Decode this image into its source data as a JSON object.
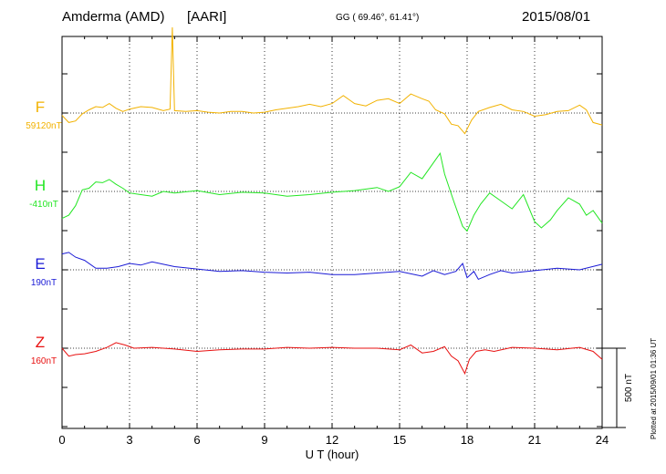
{
  "header": {
    "station": "Amderma (AMD)",
    "network": "[AARI]",
    "coords": "GG ( 69.46°,  61.41°)",
    "date": "2015/08/01"
  },
  "footer": {
    "credit": "Plotted at 2015/09/01 01:36 UT"
  },
  "chart_data": {
    "type": "line",
    "title": "",
    "xlabel": "U T (hour)",
    "ylabel": "",
    "xlim": [
      0,
      24
    ],
    "x_ticks": [
      "0",
      "3",
      "6",
      "9",
      "12",
      "15",
      "18",
      "21",
      "24"
    ],
    "grid": "vertical dotted at every 3 h; horizontal dotted baseline per component",
    "scale_bar": {
      "label": "500 nT",
      "value_nT": 500
    },
    "series": [
      {
        "name": "F",
        "baseline_label": "59120nT",
        "baseline_nT": 59120,
        "color": "#f2b200",
        "x": [
          0,
          0.3,
          0.6,
          0.9,
          1.2,
          1.5,
          1.8,
          2.1,
          2.4,
          2.7,
          3.0,
          3.5,
          4.0,
          4.5,
          4.8,
          4.9,
          5.0,
          5.5,
          6,
          6.5,
          7,
          7.5,
          8,
          8.5,
          9,
          9.5,
          10,
          10.5,
          11,
          11.5,
          12,
          12.5,
          13,
          13.5,
          14,
          14.5,
          15,
          15.5,
          16,
          16.3,
          16.6,
          17,
          17.3,
          17.6,
          17.9,
          18.2,
          18.5,
          19,
          19.5,
          20,
          20.5,
          21,
          21.5,
          22,
          22.5,
          23,
          23.3,
          23.6,
          24
        ],
        "values": [
          -15,
          -60,
          -50,
          -5,
          20,
          40,
          35,
          60,
          30,
          10,
          25,
          40,
          35,
          15,
          25,
          540,
          15,
          10,
          15,
          5,
          0,
          10,
          10,
          0,
          5,
          20,
          30,
          40,
          55,
          40,
          60,
          110,
          60,
          45,
          80,
          90,
          60,
          120,
          90,
          75,
          20,
          -5,
          -70,
          -80,
          -130,
          -45,
          10,
          35,
          55,
          20,
          10,
          -20,
          -10,
          10,
          15,
          50,
          20,
          -60,
          -75
        ]
      },
      {
        "name": "H",
        "baseline_label": "-410nT",
        "baseline_nT": -410,
        "color": "#22e622",
        "x": [
          0,
          0.3,
          0.6,
          0.9,
          1.2,
          1.5,
          1.8,
          2.1,
          2.4,
          2.7,
          3.0,
          3.5,
          4.0,
          4.5,
          5,
          6,
          7,
          8,
          9,
          10,
          11,
          12,
          13,
          14,
          14.5,
          15,
          15.5,
          16,
          16.5,
          16.8,
          17,
          17.4,
          17.8,
          18,
          18.3,
          18.6,
          19,
          19.5,
          20,
          20.5,
          21,
          21.3,
          21.7,
          22,
          22.5,
          23,
          23.3,
          23.6,
          24
        ],
        "values": [
          -170,
          -150,
          -90,
          10,
          20,
          60,
          55,
          75,
          45,
          20,
          -10,
          -20,
          -30,
          0,
          -10,
          5,
          -20,
          -5,
          -10,
          -30,
          -20,
          -5,
          5,
          25,
          0,
          30,
          120,
          80,
          180,
          240,
          110,
          -60,
          -220,
          -250,
          -150,
          -80,
          -10,
          -60,
          -110,
          -20,
          -190,
          -230,
          -180,
          -120,
          -40,
          -80,
          -150,
          -120,
          -200
        ]
      },
      {
        "name": "E",
        "baseline_label": "190nT",
        "baseline_nT": 190,
        "color": "#1a1ad6",
        "x": [
          0,
          0.3,
          0.6,
          1,
          1.5,
          2,
          2.5,
          3,
          3.5,
          4,
          5,
          6,
          7,
          8,
          9,
          10,
          11,
          12,
          13,
          14,
          15,
          16,
          16.5,
          17,
          17.5,
          17.8,
          18,
          18.3,
          18.5,
          19,
          19.5,
          20,
          21,
          22,
          23,
          24
        ],
        "values": [
          100,
          110,
          80,
          60,
          10,
          10,
          20,
          40,
          30,
          50,
          20,
          5,
          -10,
          -5,
          -15,
          -20,
          -15,
          -30,
          -30,
          -20,
          -10,
          -40,
          -5,
          -30,
          -10,
          40,
          -50,
          -10,
          -60,
          -30,
          -5,
          -20,
          -5,
          10,
          0,
          35
        ]
      },
      {
        "name": "Z",
        "baseline_label": "160nT",
        "baseline_nT": 160,
        "color": "#e81010",
        "x": [
          0,
          0.3,
          0.6,
          1,
          1.5,
          2,
          2.4,
          2.8,
          3.2,
          4,
          5,
          6,
          7,
          8,
          9,
          10,
          11,
          12,
          13,
          14,
          15,
          15.5,
          16,
          16.5,
          17,
          17.3,
          17.6,
          17.9,
          18.1,
          18.4,
          18.8,
          19.2,
          20,
          21,
          22,
          23,
          23.6,
          24
        ],
        "values": [
          0,
          -50,
          -40,
          -35,
          -20,
          5,
          35,
          20,
          0,
          5,
          -5,
          -20,
          -10,
          -5,
          -5,
          5,
          0,
          5,
          0,
          0,
          -10,
          20,
          -30,
          -20,
          10,
          -50,
          -80,
          -160,
          -70,
          -20,
          -10,
          -20,
          5,
          0,
          -10,
          5,
          -20,
          -70
        ]
      }
    ]
  }
}
